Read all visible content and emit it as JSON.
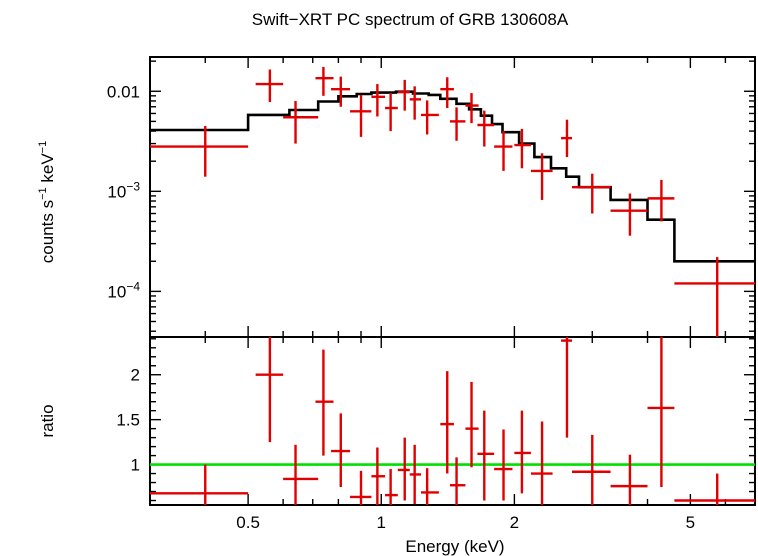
{
  "chart_data": {
    "type": "scatter",
    "title": "Swift−XRT PC spectrum of GRB 130608A",
    "xlabel": "Energy (keV)",
    "x_scale": "log",
    "xlim": [
      0.3,
      7.0
    ],
    "x_ticks": [
      {
        "v": 0.5,
        "label": "0.5"
      },
      {
        "v": 1,
        "label": "1"
      },
      {
        "v": 2,
        "label": "2"
      },
      {
        "v": 5,
        "label": "5"
      }
    ],
    "panels": [
      {
        "name": "spectrum",
        "ylabel_main": "counts s",
        "ylabel_sup1": "−1",
        "ylabel_mid": " keV",
        "ylabel_sup2": "−1",
        "y_scale": "log",
        "ylim": [
          3.5e-05,
          0.022
        ],
        "y_ticks": [
          {
            "v": 0.01,
            "label": "0.01",
            "base": "",
            "exp": ""
          },
          {
            "v": 0.001,
            "label": "",
            "base": "10",
            "exp": "−3"
          },
          {
            "v": 0.0001,
            "label": "",
            "base": "10",
            "exp": "−4"
          }
        ],
        "model": {
          "color": "#000000",
          "edges": [
            0.3,
            0.5,
            0.62,
            0.72,
            0.8,
            0.88,
            0.95,
            1.08,
            1.18,
            1.28,
            1.36,
            1.48,
            1.58,
            1.68,
            1.78,
            1.88,
            2.05,
            2.22,
            2.42,
            2.62,
            2.8,
            3.3,
            4.0,
            4.6,
            7.0
          ],
          "values": [
            0.0041,
            0.0058,
            0.0065,
            0.0079,
            0.0089,
            0.0094,
            0.0097,
            0.0099,
            0.0095,
            0.0092,
            0.0084,
            0.0075,
            0.0066,
            0.0057,
            0.0047,
            0.0039,
            0.003,
            0.0022,
            0.0017,
            0.0014,
            0.0011,
            0.00082,
            0.00052,
            0.0002
          ]
        },
        "data": {
          "color": "#e00000",
          "points": [
            {
              "x": 0.4,
              "xlo": 0.3,
              "xhi": 0.5,
              "y": 0.0028,
              "ylo": 0.0014,
              "yhi": 0.0045
            },
            {
              "x": 0.56,
              "xlo": 0.52,
              "xhi": 0.6,
              "y": 0.0118,
              "ylo": 0.0078,
              "yhi": 0.0165
            },
            {
              "x": 0.64,
              "xlo": 0.6,
              "xhi": 0.72,
              "y": 0.0055,
              "ylo": 0.003,
              "yhi": 0.008
            },
            {
              "x": 0.74,
              "xlo": 0.71,
              "xhi": 0.78,
              "y": 0.0135,
              "ylo": 0.009,
              "yhi": 0.0175
            },
            {
              "x": 0.81,
              "xlo": 0.77,
              "xhi": 0.85,
              "y": 0.0105,
              "ylo": 0.007,
              "yhi": 0.014
            },
            {
              "x": 0.9,
              "xlo": 0.85,
              "xhi": 0.95,
              "y": 0.0063,
              "ylo": 0.0035,
              "yhi": 0.0092
            },
            {
              "x": 0.98,
              "xlo": 0.95,
              "xhi": 1.02,
              "y": 0.0088,
              "ylo": 0.0056,
              "yhi": 0.0118
            },
            {
              "x": 1.05,
              "xlo": 1.02,
              "xhi": 1.09,
              "y": 0.0068,
              "ylo": 0.004,
              "yhi": 0.0096
            },
            {
              "x": 1.13,
              "xlo": 1.09,
              "xhi": 1.16,
              "y": 0.0098,
              "ylo": 0.0064,
              "yhi": 0.013
            },
            {
              "x": 1.19,
              "xlo": 1.16,
              "xhi": 1.23,
              "y": 0.0083,
              "ylo": 0.0052,
              "yhi": 0.0112
            },
            {
              "x": 1.27,
              "xlo": 1.23,
              "xhi": 1.35,
              "y": 0.0058,
              "ylo": 0.0037,
              "yhi": 0.0081
            },
            {
              "x": 1.41,
              "xlo": 1.36,
              "xhi": 1.46,
              "y": 0.0105,
              "ylo": 0.0068,
              "yhi": 0.0138
            },
            {
              "x": 1.48,
              "xlo": 1.43,
              "xhi": 1.55,
              "y": 0.005,
              "ylo": 0.0032,
              "yhi": 0.0069
            },
            {
              "x": 1.6,
              "xlo": 1.55,
              "xhi": 1.66,
              "y": 0.0072,
              "ylo": 0.0048,
              "yhi": 0.0096
            },
            {
              "x": 1.71,
              "xlo": 1.65,
              "xhi": 1.8,
              "y": 0.0046,
              "ylo": 0.0028,
              "yhi": 0.0064
            },
            {
              "x": 1.89,
              "xlo": 1.8,
              "xhi": 1.98,
              "y": 0.0028,
              "ylo": 0.0016,
              "yhi": 0.004
            },
            {
              "x": 2.08,
              "xlo": 2.0,
              "xhi": 2.18,
              "y": 0.0029,
              "ylo": 0.0017,
              "yhi": 0.0042
            },
            {
              "x": 2.31,
              "xlo": 2.18,
              "xhi": 2.44,
              "y": 0.0016,
              "ylo": 0.00082,
              "yhi": 0.0024
            },
            {
              "x": 2.63,
              "xlo": 2.55,
              "xhi": 2.7,
              "y": 0.0034,
              "ylo": 0.0022,
              "yhi": 0.0052
            },
            {
              "x": 3.0,
              "xlo": 2.7,
              "xhi": 3.3,
              "y": 0.0011,
              "ylo": 0.0006,
              "yhi": 0.0015
            },
            {
              "x": 3.65,
              "xlo": 3.3,
              "xhi": 4.0,
              "y": 0.00064,
              "ylo": 0.00036,
              "yhi": 0.00095
            },
            {
              "x": 4.3,
              "xlo": 4.0,
              "xhi": 4.6,
              "y": 0.00085,
              "ylo": 0.0005,
              "yhi": 0.0013
            },
            {
              "x": 5.75,
              "xlo": 4.6,
              "xhi": 7.0,
              "y": 0.00012,
              "ylo": 3.5e-05,
              "yhi": 0.00022
            }
          ]
        }
      },
      {
        "name": "ratio",
        "ylabel": "ratio",
        "y_scale": "linear",
        "ylim": [
          0.55,
          2.42
        ],
        "y_ticks": [
          {
            "v": 1,
            "label": "1"
          },
          {
            "v": 1.5,
            "label": "1.5"
          },
          {
            "v": 2,
            "label": "2"
          }
        ],
        "reference_line": {
          "y": 1,
          "color": "#00e000"
        },
        "data": {
          "color": "#e00000",
          "points": [
            {
              "x": 0.4,
              "xlo": 0.3,
              "xhi": 0.5,
              "y": 0.68,
              "ylo": 0.55,
              "yhi": 1.0
            },
            {
              "x": 0.56,
              "xlo": 0.52,
              "xhi": 0.6,
              "y": 2.0,
              "ylo": 1.25,
              "yhi": 2.42
            },
            {
              "x": 0.64,
              "xlo": 0.6,
              "xhi": 0.72,
              "y": 0.84,
              "ylo": 0.55,
              "yhi": 1.22
            },
            {
              "x": 0.74,
              "xlo": 0.71,
              "xhi": 0.78,
              "y": 1.7,
              "ylo": 1.1,
              "yhi": 2.28
            },
            {
              "x": 0.81,
              "xlo": 0.77,
              "xhi": 0.85,
              "y": 1.15,
              "ylo": 0.75,
              "yhi": 1.57
            },
            {
              "x": 0.9,
              "xlo": 0.85,
              "xhi": 0.95,
              "y": 0.64,
              "ylo": 0.55,
              "yhi": 0.93
            },
            {
              "x": 0.98,
              "xlo": 0.95,
              "xhi": 1.02,
              "y": 0.87,
              "ylo": 0.55,
              "yhi": 1.19
            },
            {
              "x": 1.05,
              "xlo": 1.02,
              "xhi": 1.09,
              "y": 0.66,
              "ylo": 0.55,
              "yhi": 0.95
            },
            {
              "x": 1.13,
              "xlo": 1.09,
              "xhi": 1.16,
              "y": 0.94,
              "ylo": 0.6,
              "yhi": 1.3
            },
            {
              "x": 1.19,
              "xlo": 1.16,
              "xhi": 1.23,
              "y": 0.89,
              "ylo": 0.56,
              "yhi": 1.22
            },
            {
              "x": 1.27,
              "xlo": 1.23,
              "xhi": 1.35,
              "y": 0.69,
              "ylo": 0.55,
              "yhi": 0.96
            },
            {
              "x": 1.41,
              "xlo": 1.36,
              "xhi": 1.46,
              "y": 1.45,
              "ylo": 0.9,
              "yhi": 2.04
            },
            {
              "x": 1.48,
              "xlo": 1.43,
              "xhi": 1.55,
              "y": 0.77,
              "ylo": 0.55,
              "yhi": 1.08
            },
            {
              "x": 1.6,
              "xlo": 1.55,
              "xhi": 1.66,
              "y": 1.4,
              "ylo": 0.97,
              "yhi": 1.92
            },
            {
              "x": 1.71,
              "xlo": 1.65,
              "xhi": 1.8,
              "y": 1.12,
              "ylo": 0.6,
              "yhi": 1.6
            },
            {
              "x": 1.89,
              "xlo": 1.8,
              "xhi": 1.98,
              "y": 0.95,
              "ylo": 0.6,
              "yhi": 1.39
            },
            {
              "x": 2.08,
              "xlo": 2.0,
              "xhi": 2.18,
              "y": 1.13,
              "ylo": 0.68,
              "yhi": 1.6
            },
            {
              "x": 2.31,
              "xlo": 2.18,
              "xhi": 2.44,
              "y": 0.9,
              "ylo": 0.55,
              "yhi": 1.48
            },
            {
              "x": 2.63,
              "xlo": 2.55,
              "xhi": 2.7,
              "y": 2.38,
              "ylo": 1.3,
              "yhi": 2.42
            },
            {
              "x": 3.0,
              "xlo": 2.7,
              "xhi": 3.3,
              "y": 0.92,
              "ylo": 0.55,
              "yhi": 1.33
            },
            {
              "x": 3.65,
              "xlo": 3.3,
              "xhi": 4.0,
              "y": 0.76,
              "ylo": 0.55,
              "yhi": 1.11
            },
            {
              "x": 4.3,
              "xlo": 4.0,
              "xhi": 4.6,
              "y": 1.63,
              "ylo": 0.75,
              "yhi": 2.42
            },
            {
              "x": 5.75,
              "xlo": 4.6,
              "xhi": 7.0,
              "y": 0.6,
              "ylo": 0.55,
              "yhi": 0.9
            }
          ]
        }
      }
    ]
  }
}
